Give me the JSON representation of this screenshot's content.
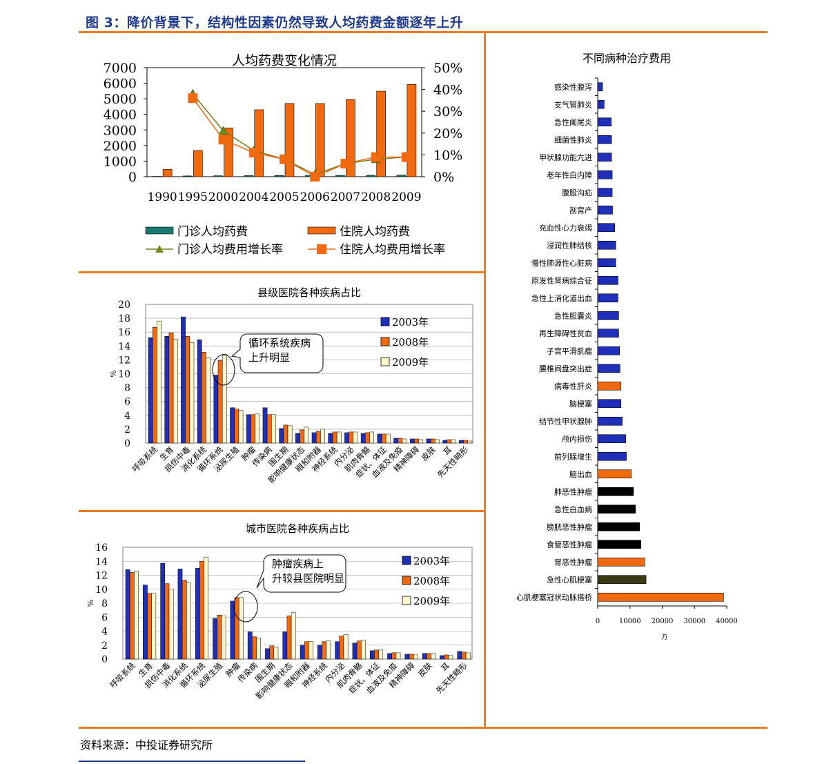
{
  "page": {
    "title": "图 3：降价背景下，结构性因素仍然导致人均药费金额逐年上升",
    "source": "资料来源：中投证券研究所"
  },
  "chart_data": [
    {
      "id": "drug-cost",
      "type": "bar",
      "title": "人均药费变化情况",
      "categories": [
        "1990",
        "1995",
        "2000",
        "2004",
        "2005",
        "2006",
        "2007",
        "2008",
        "2009"
      ],
      "series": [
        {
          "name": "门诊人均药费",
          "type": "bar",
          "axis": "left",
          "color": "#1a7a70",
          "values": [
            20,
            50,
            60,
            70,
            80,
            85,
            85,
            90,
            100
          ]
        },
        {
          "name": "住院人均药费",
          "type": "bar",
          "axis": "left",
          "color": "#f26a10",
          "values": [
            470,
            1680,
            3130,
            4300,
            4700,
            4700,
            4950,
            5490,
            5920
          ]
        },
        {
          "name": "门诊人均费用增长率",
          "type": "line",
          "axis": "right",
          "color": "#7a7a16",
          "values": [
            null,
            0.38,
            0.21,
            0.12,
            0.08,
            0.01,
            0.06,
            0.08,
            0.09
          ]
        },
        {
          "name": "住院人均费用增长率",
          "type": "line",
          "axis": "right",
          "color": "#f26a10",
          "values": [
            null,
            0.36,
            0.17,
            0.11,
            0.08,
            0.0,
            0.06,
            0.09,
            0.09
          ]
        }
      ],
      "yticks_left": [
        "7000",
        "6000",
        "5000",
        "4000",
        "3000",
        "2000",
        "1000",
        "0"
      ],
      "yticks_right": [
        "50%",
        "40%",
        "30%",
        "20%",
        "10%",
        "0%"
      ],
      "ylim_left": [
        0,
        7000
      ],
      "ylim_right": [
        0,
        0.5
      ],
      "legend": "bottom"
    },
    {
      "id": "county",
      "type": "bar",
      "title": "县级医院各种疾病占比",
      "ylabel": "%",
      "categories": [
        "呼吸系统",
        "生育",
        "损伤中毒",
        "消化系统",
        "循环系统",
        "泌尿生殖",
        "肿瘤",
        "传染病",
        "围生期",
        "影响健康状态",
        "眼和附器",
        "神经系统",
        "内分泌",
        "肌肉骨骼",
        "症状、体征",
        "血液及免疫",
        "精神障碍",
        "皮肤",
        "耳",
        "先天性畸形"
      ],
      "series": [
        {
          "name": "2003年",
          "color": "#1f2fb8",
          "values": [
            15.2,
            15.4,
            18.2,
            14.9,
            9.8,
            5.1,
            4.1,
            5.1,
            2.1,
            1.4,
            1.5,
            1.4,
            1.5,
            1.4,
            1.3,
            0.7,
            0.6,
            0.6,
            0.4,
            0.4
          ]
        },
        {
          "name": "2008年",
          "color": "#f26a10",
          "values": [
            16.7,
            15.9,
            15.4,
            13.1,
            11.9,
            4.9,
            4.1,
            4.1,
            2.6,
            1.9,
            1.7,
            1.6,
            1.6,
            1.5,
            1.3,
            0.7,
            0.6,
            0.6,
            0.5,
            0.4
          ]
        },
        {
          "name": "2009年",
          "color": "#fff5cc",
          "values": [
            17.6,
            15.0,
            14.5,
            12.3,
            12.8,
            4.7,
            4.2,
            4.1,
            2.5,
            2.3,
            2.0,
            1.6,
            1.6,
            1.6,
            1.3,
            0.6,
            0.5,
            0.5,
            0.5,
            0.3
          ]
        }
      ],
      "yticks": [
        "20",
        "18",
        "16",
        "14",
        "12",
        "10",
        "8",
        "6",
        "4",
        "2",
        "0"
      ],
      "ylim": [
        0,
        20
      ],
      "annotation": "循环系统疾病上升明显",
      "legend": "top-right"
    },
    {
      "id": "city",
      "type": "bar",
      "title": "城市医院各种疾病占比",
      "ylabel": "%",
      "categories": [
        "呼吸系统",
        "生育",
        "损伤中毒",
        "消化系统",
        "循环系统",
        "泌尿生殖",
        "肿瘤",
        "传染病",
        "围生期",
        "影响健康状态",
        "眼和附器",
        "神经系统",
        "内分泌",
        "肌肉骨骼",
        "症状、体征",
        "血液及免疫",
        "精神障碍",
        "皮肤",
        "耳",
        "先天性畸形"
      ],
      "series": [
        {
          "name": "2003年",
          "color": "#1f2fb8",
          "values": [
            12.8,
            10.6,
            13.7,
            12.9,
            13.0,
            5.8,
            8.3,
            3.9,
            1.5,
            3.9,
            2.0,
            2.0,
            2.5,
            2.3,
            1.2,
            0.8,
            0.7,
            0.8,
            0.5,
            1.1
          ]
        },
        {
          "name": "2008年",
          "color": "#f26a10",
          "values": [
            12.4,
            9.4,
            10.8,
            11.3,
            14.0,
            6.3,
            8.8,
            3.2,
            1.9,
            6.2,
            2.5,
            2.5,
            3.3,
            2.6,
            1.3,
            0.9,
            0.7,
            0.8,
            0.6,
            1.0
          ]
        },
        {
          "name": "2009年",
          "color": "#fff5cc",
          "values": [
            12.6,
            9.4,
            10.0,
            10.9,
            14.6,
            6.2,
            8.8,
            3.0,
            1.7,
            6.7,
            2.5,
            2.6,
            3.5,
            2.7,
            1.3,
            0.9,
            0.6,
            0.8,
            0.5,
            0.9
          ]
        }
      ],
      "yticks": [
        "16",
        "14",
        "12",
        "10",
        "8",
        "6",
        "4",
        "2",
        "0"
      ],
      "ylim": [
        0,
        16
      ],
      "annotation": "肿瘤疾病上升较县医院明显",
      "legend": "top-right"
    },
    {
      "id": "treatment",
      "type": "bar",
      "orientation": "horizontal",
      "title": "不同病种治疗费用",
      "xlabel": "万",
      "categories": [
        "感染性腹泻",
        "支气管肺炎",
        "急性阑尾炎",
        "细菌性肺炎",
        "甲状腺功能亢进",
        "老年性白内障",
        "腹股沟疝",
        "剖宫产",
        "充血性心力衰竭",
        "浸润性肺结核",
        "慢性肺源性心脏病",
        "原发性肾病综合征",
        "急性上消化道出血",
        "急性胆囊炎",
        "再生障碍性贫血",
        "子宫平滑肌瘤",
        "腰椎间盘突出症",
        "病毒性肝炎",
        "脑梗塞",
        "结节性甲状腺肿",
        "颅内损伤",
        "前列腺增生",
        "脑出血",
        "肺恶性肿瘤",
        "急性白血病",
        "膀胱恶性肿瘤",
        "食管恶性肿瘤",
        "胃恶性肿瘤",
        "急性心肌梗塞",
        "心肌梗塞冠状动脉搭桥"
      ],
      "values": [
        1500,
        2000,
        4200,
        4300,
        4300,
        4500,
        4500,
        4600,
        5300,
        5600,
        5600,
        6300,
        6300,
        6500,
        6500,
        6800,
        6900,
        7200,
        7200,
        7600,
        8700,
        8900,
        10400,
        11100,
        11700,
        13000,
        13400,
        14600,
        15000,
        39000
      ],
      "colors": [
        "#1f2fb8",
        "#1f2fb8",
        "#1f2fb8",
        "#1f2fb8",
        "#1f2fb8",
        "#1f2fb8",
        "#1f2fb8",
        "#1f2fb8",
        "#1f2fb8",
        "#1f2fb8",
        "#1f2fb8",
        "#1f2fb8",
        "#1f2fb8",
        "#1f2fb8",
        "#1f2fb8",
        "#1f2fb8",
        "#1f2fb8",
        "#f26a10",
        "#1f2fb8",
        "#1f2fb8",
        "#1f2fb8",
        "#1f2fb8",
        "#f26a10",
        "#000000",
        "#000000",
        "#000000",
        "#000000",
        "#f26a10",
        "#3a3a14",
        "#f26a10"
      ],
      "xticks": [
        "0",
        "10000",
        "20000",
        "30000",
        "40000"
      ],
      "xlim": [
        0,
        40000
      ]
    }
  ]
}
